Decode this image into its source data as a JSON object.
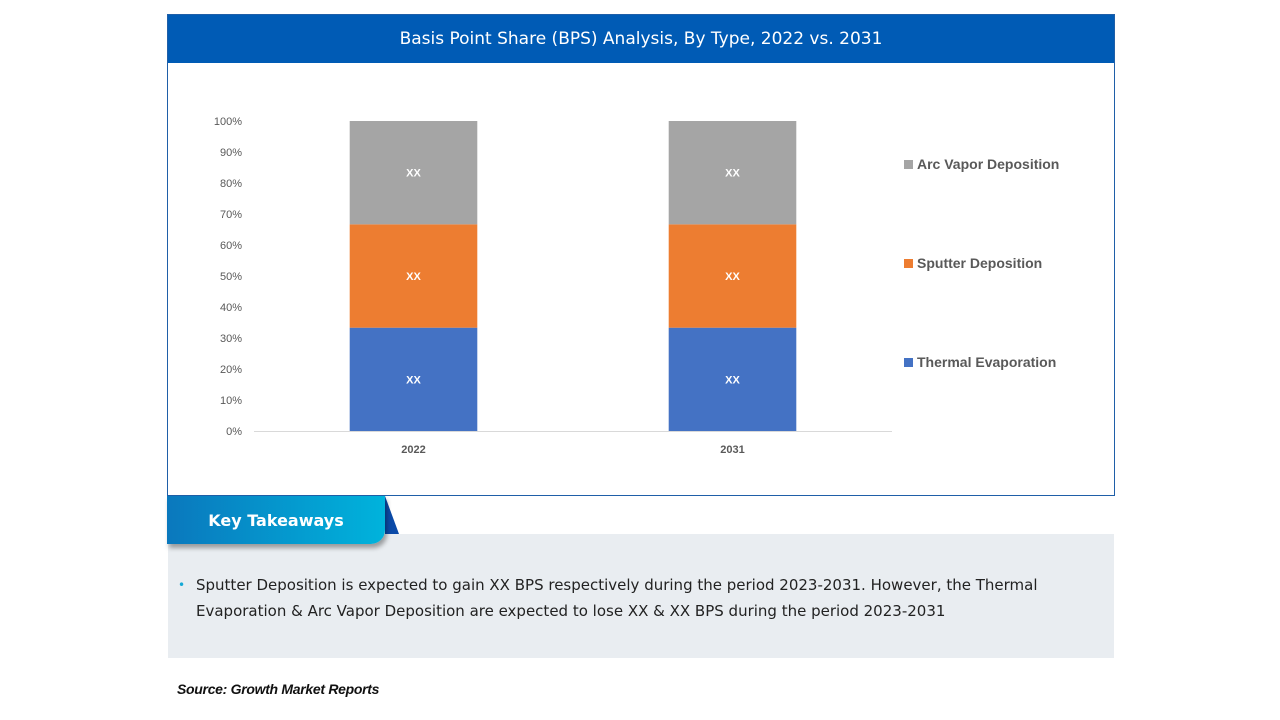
{
  "panel": {
    "title": "Basis Point Share (BPS) Analysis, By Type, 2022 vs. 2031"
  },
  "chart_data": {
    "type": "bar",
    "stacked": true,
    "normalized": true,
    "title": "Basis Point Share (BPS) Analysis, By Type, 2022 vs. 2031",
    "xlabel": "",
    "ylabel": "",
    "ylim": [
      0,
      100
    ],
    "yticks": [
      "0%",
      "10%",
      "20%",
      "30%",
      "40%",
      "50%",
      "60%",
      "70%",
      "80%",
      "90%",
      "100%"
    ],
    "categories": [
      "2022",
      "2031"
    ],
    "series": [
      {
        "name": "Thermal Evaporation",
        "color": "#4472c4",
        "values": [
          33.33,
          33.33
        ],
        "labels": [
          "XX",
          "XX"
        ]
      },
      {
        "name": "Sputter Deposition",
        "color": "#ed7d31",
        "values": [
          33.33,
          33.33
        ],
        "labels": [
          "XX",
          "XX"
        ]
      },
      {
        "name": "Arc Vapor Deposition",
        "color": "#a5a5a5",
        "values": [
          33.34,
          33.34
        ],
        "labels": [
          "XX",
          "XX"
        ]
      }
    ],
    "legend": {
      "placement": "right",
      "order": [
        "Arc Vapor Deposition",
        "Sputter Deposition",
        "Thermal Evaporation"
      ]
    },
    "grid": false
  },
  "takeaways": {
    "heading": "Key Takeaways",
    "items": [
      "Sputter Deposition is expected to gain XX BPS respectively during the period 2023-2031. However, the Thermal Evaporation & Arc Vapor Deposition are expected to lose XX & XX BPS during the period 2023-2031"
    ]
  },
  "source": "Source: Growth Market Reports"
}
